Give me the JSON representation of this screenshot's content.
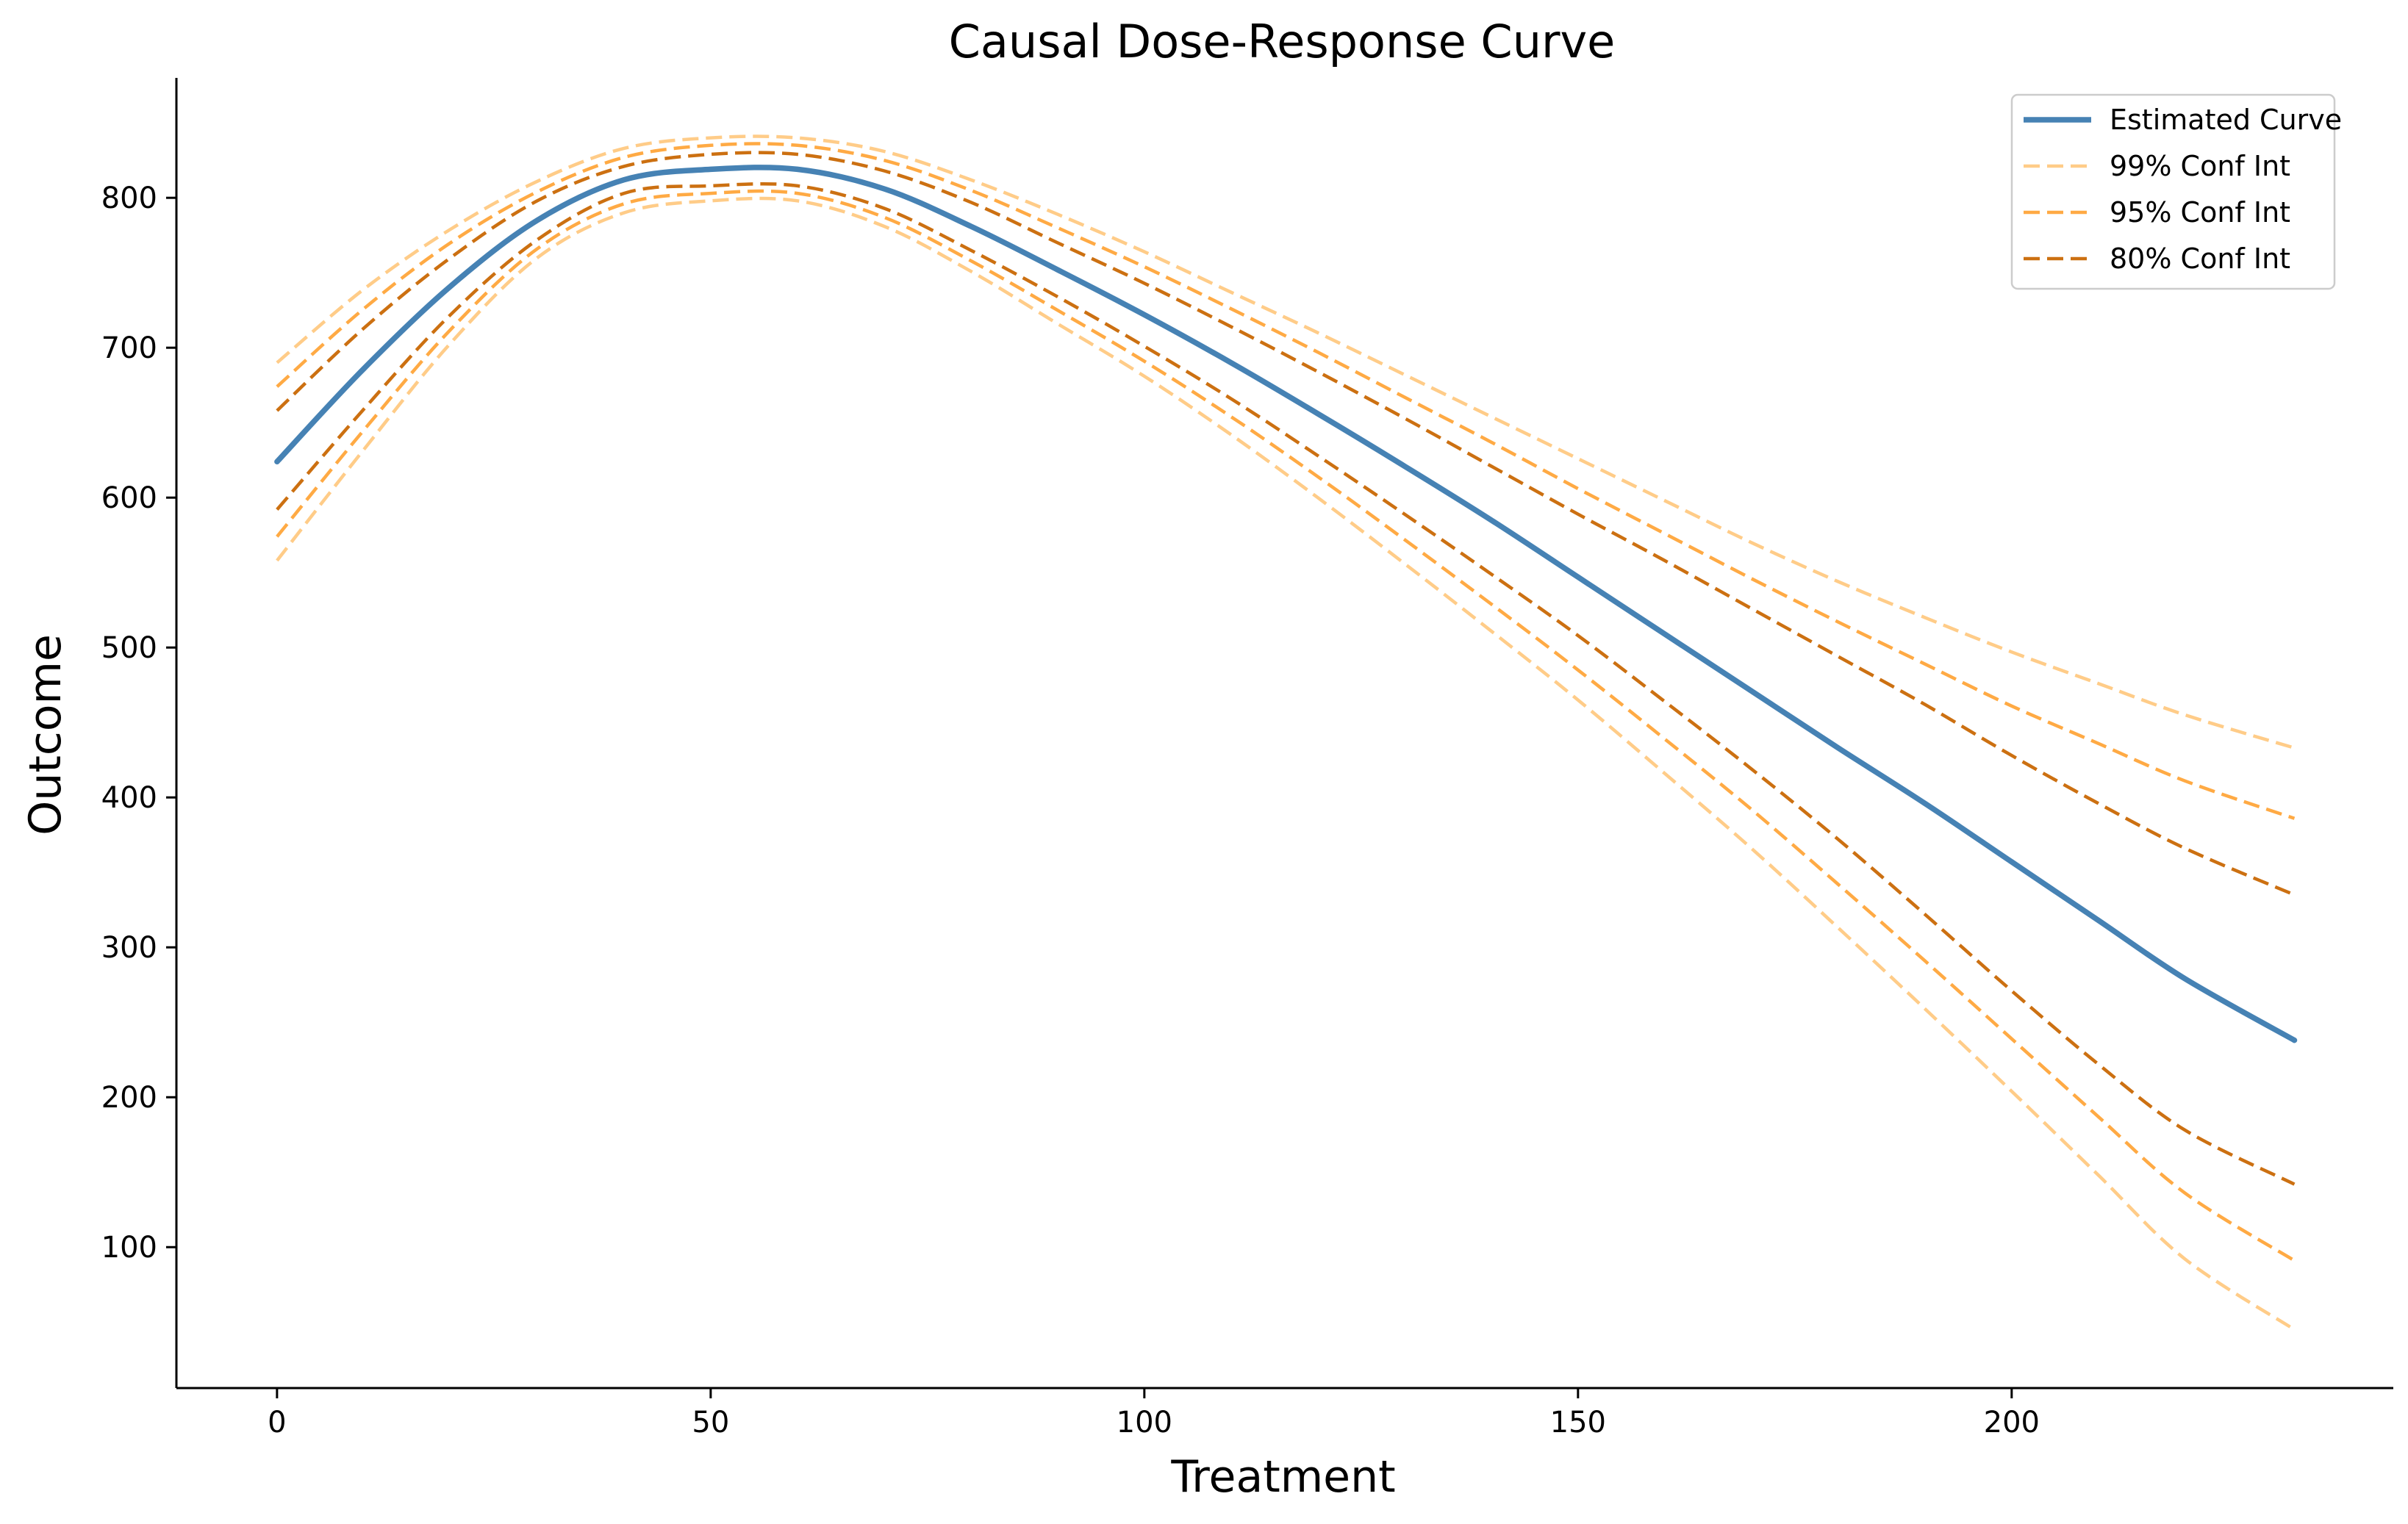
{
  "chart_data": {
    "type": "line",
    "title": "Causal Dose-Response Curve",
    "xlabel": "Treatment",
    "ylabel": "Outcome",
    "xlim": [
      -11.6,
      244.0
    ],
    "ylim": [
      6.0,
      880.0
    ],
    "xticks": [
      0,
      50,
      100,
      150,
      200
    ],
    "yticks": [
      100,
      200,
      300,
      400,
      500,
      600,
      700,
      800
    ],
    "grid": false,
    "legend_position": "top-right",
    "x": [
      0,
      10,
      20,
      30,
      40,
      50,
      60,
      70,
      80,
      90,
      100,
      110,
      120,
      130,
      140,
      150,
      160,
      170,
      180,
      190,
      200,
      210,
      220,
      232.6
    ],
    "series": [
      {
        "name": "Estimated Curve",
        "color": "#4682b4",
        "dash": "solid",
        "values": [
          624,
          686,
          741,
          785,
          812,
          819,
          819,
          806,
          781,
          752,
          722,
          690,
          656,
          621,
          585,
          547,
          509,
          471,
          433,
          396,
          357,
          318,
          279,
          238
        ]
      },
      {
        "name": "99% Conf Int",
        "color": "#ffcc88",
        "dash": "dashed",
        "upper": [
          690,
          739,
          779,
          811,
          833,
          840,
          840,
          831,
          812,
          789,
          764,
          737,
          710,
          682,
          654,
          626,
          598,
          570,
          544,
          520,
          497,
          476,
          455,
          433
        ],
        "lower": [
          558,
          632,
          703,
          760,
          790,
          798,
          798,
          781,
          751,
          716,
          681,
          642,
          600,
          556,
          511,
          465,
          416,
          366,
          313,
          259,
          204,
          148,
          92,
          45
        ]
      },
      {
        "name": "95% Conf Int",
        "color": "#ffaa44",
        "dash": "dashed",
        "upper": [
          674,
          726,
          770,
          804,
          827,
          835,
          835,
          825,
          805,
          780,
          754,
          726,
          697,
          667,
          637,
          606,
          576,
          546,
          517,
          489,
          461,
          436,
          411,
          386
        ],
        "lower": [
          574,
          645,
          712,
          766,
          796,
          803,
          803,
          787,
          758,
          725,
          691,
          654,
          614,
          572,
          529,
          485,
          439,
          392,
          342,
          291,
          239,
          187,
          136,
          91
        ]
      },
      {
        "name": "80% Conf Int",
        "color": "#cc7011",
        "dash": "dashed",
        "upper": [
          658,
          713,
          760,
          798,
          821,
          829,
          829,
          818,
          797,
          770,
          743,
          714,
          684,
          653,
          621,
          589,
          558,
          526,
          494,
          462,
          428,
          396,
          366,
          335
        ],
        "lower": [
          592,
          659,
          722,
          772,
          803,
          808,
          808,
          793,
          765,
          734,
          701,
          666,
          628,
          589,
          549,
          508,
          464,
          419,
          372,
          322,
          271,
          222,
          178,
          142
        ]
      }
    ]
  }
}
